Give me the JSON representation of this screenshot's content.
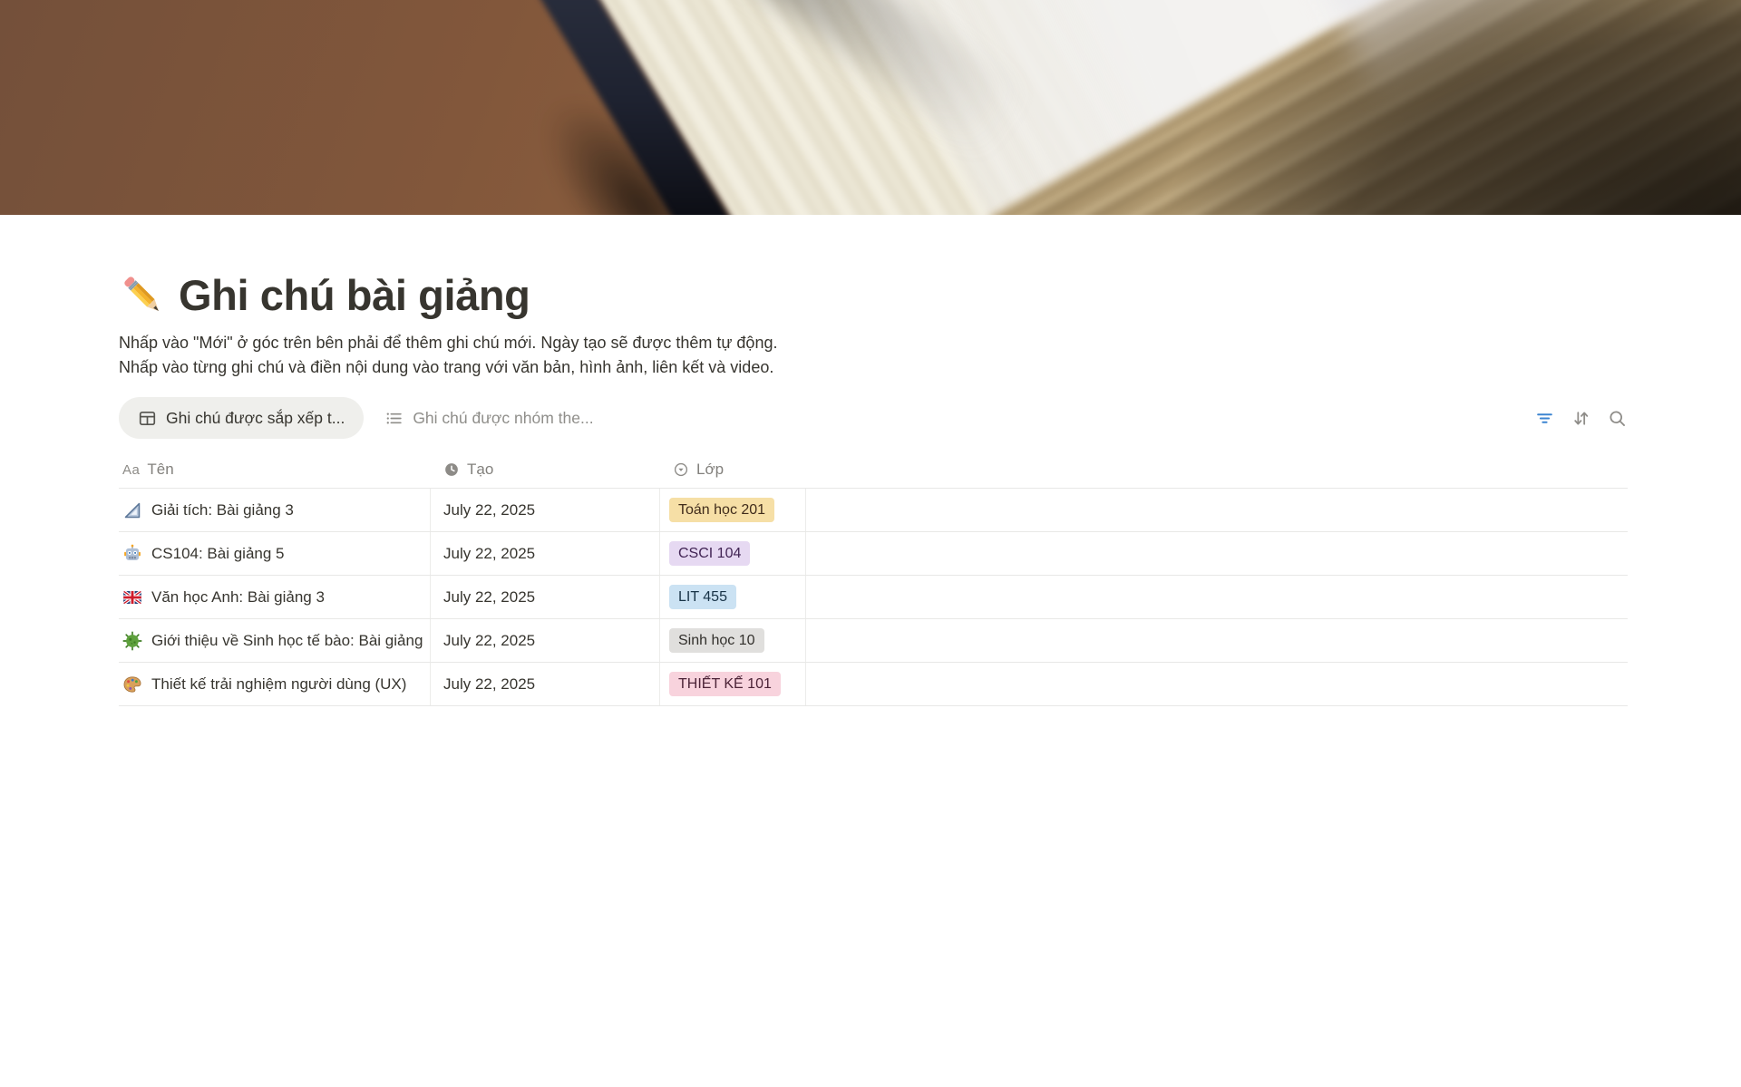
{
  "page": {
    "icon": "pencil-emoji",
    "title": "Ghi chú bài giảng",
    "description_line1": "Nhấp vào \"Mới\" ở góc trên bên phải để thêm ghi chú mới. Ngày tạo sẽ được thêm tự động.",
    "description_line2": "Nhấp vào từng ghi chú và điền nội dung vào trang với văn bản, hình ảnh, liên kết và video."
  },
  "views": {
    "active_tab": {
      "icon": "table-view-icon",
      "label": "Ghi chú được sắp xếp t..."
    },
    "inactive_tab": {
      "icon": "list-view-icon",
      "label": "Ghi chú được nhóm the..."
    }
  },
  "toolbar": {
    "icons": [
      "filter-icon",
      "sort-icon",
      "search-icon"
    ],
    "filter_active_color": "#3d85d1"
  },
  "table": {
    "columns": [
      {
        "label": "Tên",
        "icon": "text-icon"
      },
      {
        "label": "Tạo",
        "icon": "clock-icon"
      },
      {
        "label": "Lớp",
        "icon": "select-icon"
      }
    ],
    "rows": [
      {
        "icon": "triangular-ruler",
        "name": "Giải tích: Bài giảng 3",
        "created": "July 22, 2025",
        "class": {
          "label": "Toán học 201",
          "bg": "#f6dfa6",
          "fg": "#402c1b"
        }
      },
      {
        "icon": "robot",
        "name": "CS104: Bài giảng 5",
        "created": "July 22, 2025",
        "class": {
          "label": "CSCI 104",
          "bg": "#e6d9f2",
          "fg": "#412454"
        }
      },
      {
        "icon": "uk-flag",
        "name": "Văn học Anh: Bài giảng 3",
        "created": "July 22, 2025",
        "class": {
          "label": "LIT 455",
          "bg": "#cbe2f3",
          "fg": "#183347"
        }
      },
      {
        "icon": "microbe",
        "name": "Giới thiệu về Sinh học tế bào: Bài giảng",
        "created": "July 22, 2025",
        "class": {
          "label": "Sinh học 10",
          "bg": "#e0dfdd",
          "fg": "#32302c"
        }
      },
      {
        "icon": "palette",
        "name": "Thiết kế trải nghiệm người dùng (UX)",
        "created": "July 22, 2025",
        "class": {
          "label": "THIẾT KẾ 101",
          "bg": "#f8d3dd",
          "fg": "#4c2337"
        }
      }
    ]
  }
}
